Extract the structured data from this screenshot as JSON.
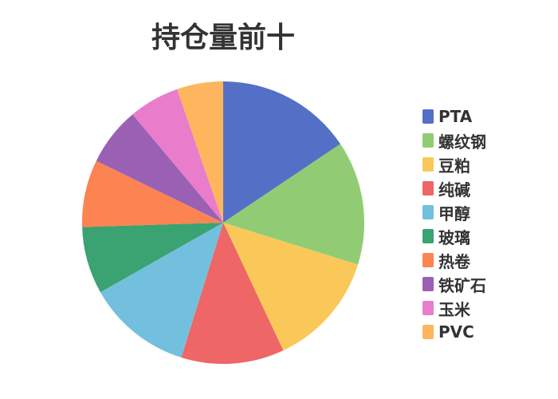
{
  "chart_data": {
    "type": "pie",
    "title": "持仓量前十",
    "categories": [
      "PTA",
      "螺纹钢",
      "豆粕",
      "纯碱",
      "甲醇",
      "玻璃",
      "热卷",
      "铁矿石",
      "玉米",
      "PVC"
    ],
    "values": [
      15.6,
      14.2,
      13.2,
      11.8,
      12.0,
      7.7,
      7.7,
      6.7,
      5.8,
      5.3
    ],
    "colors": [
      "#5470c6",
      "#91cc75",
      "#fac858",
      "#ee6666",
      "#73c0de",
      "#3ba272",
      "#fc8452",
      "#9a60b4",
      "#ea7ccc",
      "#fdb65d"
    ],
    "legend_position": "right"
  }
}
